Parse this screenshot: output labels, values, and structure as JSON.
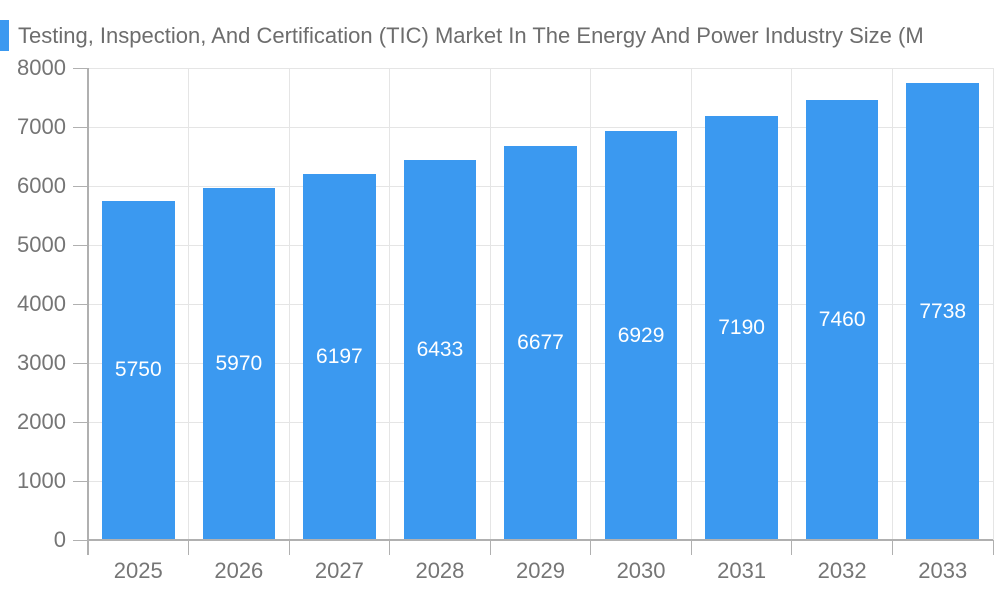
{
  "chart_data": {
    "type": "bar",
    "title": "Testing, Inspection, And Certification (TIC) Market In The Energy And Power Industry Size (M",
    "categories": [
      "2025",
      "2026",
      "2027",
      "2028",
      "2029",
      "2030",
      "2031",
      "2032",
      "2033"
    ],
    "values": [
      5750,
      5970,
      6197,
      6433,
      6677,
      6929,
      7190,
      7460,
      7738
    ],
    "value_labels": [
      "5750",
      "5970",
      "6197",
      "6433",
      "6677",
      "6929",
      "7190",
      "7460",
      "7738"
    ],
    "xlabel": "",
    "ylabel": "",
    "ylim": [
      0,
      8000
    ],
    "ytick_step": 1000,
    "ytick_labels": [
      "0",
      "1000",
      "2000",
      "3000",
      "4000",
      "5000",
      "6000",
      "7000",
      "8000"
    ],
    "grid": true,
    "legend_position": "top-left",
    "colors": {
      "bar": "#3B99F0",
      "value_label": "#FFFFFF",
      "grid": "#E5E5E5",
      "axis": "#B0B0B0",
      "text": "#757575",
      "title": "#6D6D6D",
      "background": "#FFFFFF"
    }
  }
}
